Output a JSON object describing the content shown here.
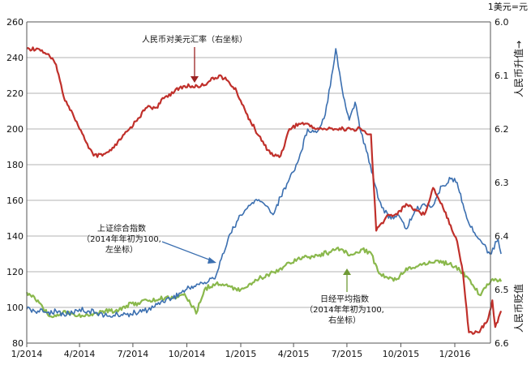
{
  "chart_data": {
    "type": "line",
    "x_ticks": [
      "1/2014",
      "4/2014",
      "7/2014",
      "10/2014",
      "1/2015",
      "4/2015",
      "7/2015",
      "10/2015",
      "1/2016"
    ],
    "x_range": [
      "2014-01",
      "2016-04"
    ],
    "left_axis": {
      "ticks": [
        "80",
        "100",
        "120",
        "140",
        "160",
        "180",
        "200",
        "220",
        "240",
        "260"
      ],
      "ylim": [
        80,
        260
      ]
    },
    "right_axis": {
      "ticks": [
        "6.0",
        "6.1",
        "6.2",
        "6.3",
        "6.4",
        "6.5",
        "6.6"
      ],
      "ylim": [
        6.0,
        6.6
      ],
      "inverted": true
    },
    "right_unit": "1美元=元",
    "right_top_label": "人民币升值→",
    "right_bottom_label": "人民币贬值",
    "grid": "horizontal",
    "annotations": {
      "cny": "人民币对美元汇率（右坐标）",
      "sse": [
        "上证综合指数",
        "（2014年年初为100,",
        "左坐标）"
      ],
      "nikkei": [
        "日经平均指数",
        "（2014年年初为100,",
        "右坐标）"
      ]
    },
    "series": [
      {
        "name": "人民币对美元汇率（右坐标）",
        "axis": "right",
        "color": "#c0302b",
        "x": [
          "2014-01-01",
          "2014-01-20",
          "2014-02-05",
          "2014-02-20",
          "2014-03-05",
          "2014-03-20",
          "2014-04-01",
          "2014-04-10",
          "2014-04-25",
          "2014-05-10",
          "2014-05-25",
          "2014-06-10",
          "2014-06-25",
          "2014-07-10",
          "2014-07-25",
          "2014-08-10",
          "2014-08-25",
          "2014-09-10",
          "2014-09-25",
          "2014-10-10",
          "2014-10-25",
          "2014-11-10",
          "2014-11-25",
          "2014-12-10",
          "2014-12-25",
          "2015-01-10",
          "2015-01-25",
          "2015-02-10",
          "2015-02-25",
          "2015-03-10",
          "2015-03-25",
          "2015-04-10",
          "2015-04-25",
          "2015-05-10",
          "2015-05-25",
          "2015-06-10",
          "2015-06-25",
          "2015-07-10",
          "2015-07-25",
          "2015-08-05",
          "2015-08-11",
          "2015-08-20",
          "2015-09-10",
          "2015-09-25",
          "2015-10-10",
          "2015-10-25",
          "2015-11-10",
          "2015-11-25",
          "2015-12-10",
          "2015-12-25",
          "2016-01-05",
          "2016-01-15",
          "2016-01-25",
          "2016-02-10",
          "2016-02-25",
          "2016-03-05",
          "2016-03-10",
          "2016-03-20"
        ],
        "values": [
          6.05,
          6.05,
          6.06,
          6.08,
          6.14,
          6.17,
          6.2,
          6.22,
          6.25,
          6.25,
          6.24,
          6.22,
          6.2,
          6.18,
          6.16,
          6.16,
          6.14,
          6.13,
          6.12,
          6.12,
          6.12,
          6.11,
          6.1,
          6.11,
          6.13,
          6.17,
          6.2,
          6.23,
          6.25,
          6.25,
          6.2,
          6.19,
          6.19,
          6.2,
          6.2,
          6.2,
          6.2,
          6.2,
          6.2,
          6.21,
          6.21,
          6.39,
          6.36,
          6.36,
          6.34,
          6.35,
          6.36,
          6.31,
          6.34,
          6.38,
          6.41,
          6.47,
          6.58,
          6.58,
          6.56,
          6.52,
          6.57,
          6.54
        ]
      },
      {
        "name": "上证综合指数",
        "axis": "left",
        "color": "#3b6fb0",
        "x": [
          "2014-01-01",
          "2014-01-20",
          "2014-02-05",
          "2014-02-20",
          "2014-03-05",
          "2014-03-20",
          "2014-04-01",
          "2014-04-15",
          "2014-05-01",
          "2014-05-20",
          "2014-06-05",
          "2014-06-20",
          "2014-07-05",
          "2014-07-20",
          "2014-08-05",
          "2014-08-20",
          "2014-09-05",
          "2014-09-20",
          "2014-10-05",
          "2014-10-20",
          "2014-11-05",
          "2014-11-20",
          "2014-12-01",
          "2014-12-10",
          "2014-12-25",
          "2015-01-10",
          "2015-01-25",
          "2015-02-10",
          "2015-02-25",
          "2015-03-10",
          "2015-03-25",
          "2015-04-10",
          "2015-04-25",
          "2015-05-10",
          "2015-05-25",
          "2015-06-05",
          "2015-06-12",
          "2015-06-25",
          "2015-07-05",
          "2015-07-15",
          "2015-07-25",
          "2015-08-10",
          "2015-08-25",
          "2015-09-10",
          "2015-09-25",
          "2015-10-10",
          "2015-10-25",
          "2015-11-10",
          "2015-11-25",
          "2015-12-10",
          "2015-12-25",
          "2016-01-05",
          "2016-01-15",
          "2016-01-28",
          "2016-02-15",
          "2016-03-01",
          "2016-03-15",
          "2016-03-20"
        ],
        "values": [
          99,
          98,
          97,
          98,
          96,
          97,
          99,
          98,
          97,
          95,
          96,
          96,
          97,
          98,
          100,
          104,
          105,
          108,
          111,
          113,
          114,
          118,
          130,
          138,
          148,
          155,
          160,
          158,
          152,
          162,
          172,
          183,
          200,
          198,
          208,
          230,
          245,
          218,
          205,
          215,
          198,
          180,
          160,
          150,
          152,
          144,
          154,
          158,
          157,
          168,
          172,
          170,
          158,
          145,
          137,
          130,
          138,
          130
        ]
      },
      {
        "name": "日经平均指数",
        "axis": "right",
        "color": "#8ab84c",
        "x": [
          "2014-01-01",
          "2014-01-20",
          "2014-02-05",
          "2014-02-20",
          "2014-03-05",
          "2014-03-20",
          "2014-04-10",
          "2014-04-25",
          "2014-05-15",
          "2014-06-01",
          "2014-06-20",
          "2014-07-10",
          "2014-07-25",
          "2014-08-10",
          "2014-08-25",
          "2014-09-10",
          "2014-09-25",
          "2014-10-05",
          "2014-10-17",
          "2014-10-31",
          "2014-11-15",
          "2014-12-01",
          "2014-12-15",
          "2015-01-01",
          "2015-01-15",
          "2015-02-01",
          "2015-02-20",
          "2015-03-10",
          "2015-03-25",
          "2015-04-10",
          "2015-04-25",
          "2015-05-15",
          "2015-06-01",
          "2015-06-20",
          "2015-07-10",
          "2015-07-25",
          "2015-08-10",
          "2015-08-25",
          "2015-09-10",
          "2015-09-25",
          "2015-10-10",
          "2015-10-25",
          "2015-11-10",
          "2015-11-25",
          "2015-12-10",
          "2015-12-25",
          "2016-01-10",
          "2016-01-25",
          "2016-02-12",
          "2016-02-25",
          "2016-03-10",
          "2016-03-20"
        ],
        "values": [
          6.505,
          6.52,
          6.545,
          6.55,
          6.54,
          6.545,
          6.55,
          6.545,
          6.54,
          6.54,
          6.53,
          6.525,
          6.52,
          6.52,
          6.515,
          6.515,
          6.51,
          6.52,
          6.545,
          6.5,
          6.49,
          6.49,
          6.495,
          6.5,
          6.49,
          6.48,
          6.47,
          6.46,
          6.45,
          6.44,
          6.44,
          6.435,
          6.43,
          6.425,
          6.435,
          6.425,
          6.43,
          6.47,
          6.48,
          6.48,
          6.46,
          6.46,
          6.45,
          6.45,
          6.45,
          6.45,
          6.465,
          6.48,
          6.51,
          6.49,
          6.48,
          6.485
        ]
      }
    ]
  }
}
